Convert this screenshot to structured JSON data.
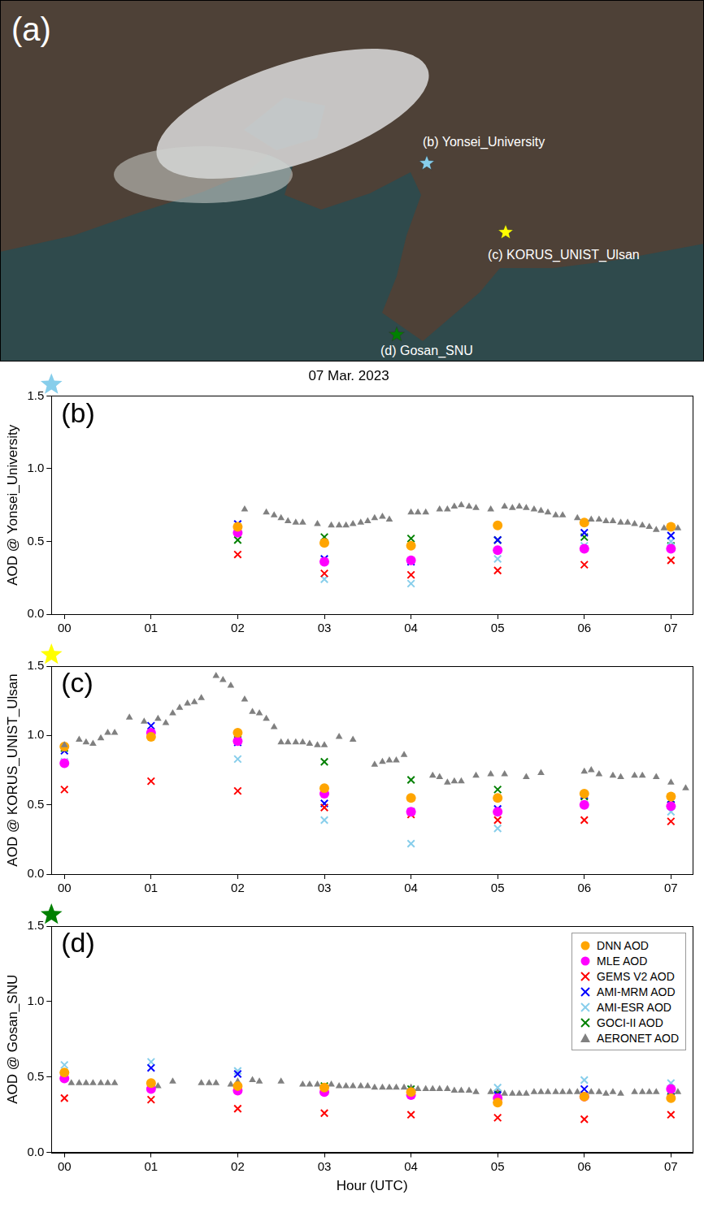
{
  "map": {
    "label": "(a)",
    "stations": [
      {
        "name": "(b) Yonsei_University",
        "color": "#87ceeb"
      },
      {
        "name": "(c) KORUS_UNIST_Ulsan",
        "color": "#ffff00"
      },
      {
        "name": "(d) Gosan_SNU",
        "color": "#008000"
      }
    ]
  },
  "chart_data": [
    {
      "type": "scatter",
      "title": "07 Mar. 2023",
      "panel_label": "(b)",
      "color": "#87ceeb",
      "y_label": "AOD @ Yonsei_University",
      "xlim": [
        -0.15,
        7.25
      ],
      "xticks": [
        {
          "value": 0,
          "label": "00"
        },
        {
          "value": 1,
          "label": "01"
        },
        {
          "value": 2,
          "label": "02"
        },
        {
          "value": 3,
          "label": "03"
        },
        {
          "value": 4,
          "label": "04"
        },
        {
          "value": 5,
          "label": "05"
        },
        {
          "value": 6,
          "label": "06"
        },
        {
          "value": 7,
          "label": "07"
        }
      ],
      "ylim": [
        0,
        1.5
      ],
      "yticks": [
        {
          "value": 0,
          "label": "0.0"
        },
        0.5,
        {
          "value": 1,
          "label": "1.0"
        },
        1.5
      ],
      "grid": false,
      "series": [
        {
          "color": "#808080",
          "marker": "triangle",
          "x": [
            2.08,
            2.33,
            2.42,
            2.5,
            2.58,
            2.67,
            2.75,
            2.92,
            3.08,
            3.17,
            3.25,
            3.33,
            3.42,
            3.5,
            3.58,
            3.67,
            3.75,
            4.0,
            4.08,
            4.17,
            4.33,
            4.42,
            4.5,
            4.58,
            4.67,
            4.75,
            4.92,
            5.08,
            5.17,
            5.25,
            5.33,
            5.42,
            5.5,
            5.58,
            5.67,
            5.75,
            5.92,
            6.08,
            6.17,
            6.25,
            6.33,
            6.42,
            6.5,
            6.58,
            6.67,
            6.75,
            6.83,
            6.92,
            7.08
          ],
          "values": [
            0.72,
            0.7,
            0.68,
            0.66,
            0.64,
            0.63,
            0.63,
            0.62,
            0.61,
            0.61,
            0.61,
            0.62,
            0.63,
            0.64,
            0.66,
            0.67,
            0.65,
            0.7,
            0.7,
            0.7,
            0.72,
            0.72,
            0.74,
            0.75,
            0.74,
            0.73,
            0.72,
            0.74,
            0.73,
            0.74,
            0.73,
            0.72,
            0.71,
            0.7,
            0.68,
            0.68,
            0.66,
            0.65,
            0.65,
            0.64,
            0.64,
            0.63,
            0.63,
            0.62,
            0.61,
            0.6,
            0.58,
            0.59,
            0.59
          ]
        },
        {
          "color": "#ffa500",
          "marker": "circle",
          "x": [
            2,
            3,
            4,
            5,
            6,
            7
          ],
          "values": [
            0.6,
            0.49,
            0.47,
            0.61,
            0.63,
            0.6
          ]
        },
        {
          "color": "#ff00ff",
          "marker": "circle",
          "x": [
            2,
            3,
            4,
            5,
            6,
            7
          ],
          "values": [
            0.56,
            0.36,
            0.37,
            0.44,
            0.45,
            0.45
          ]
        },
        {
          "color": "#ff0000",
          "marker": "x",
          "x": [
            2,
            3,
            4,
            5,
            6,
            7
          ],
          "values": [
            0.41,
            0.28,
            0.27,
            0.3,
            0.34,
            0.37
          ]
        },
        {
          "color": "#0000ff",
          "marker": "x",
          "x": [
            2,
            3,
            4,
            5,
            6,
            7
          ],
          "values": [
            0.62,
            0.38,
            0.36,
            0.51,
            0.56,
            0.54
          ]
        },
        {
          "color": "#87ceeb",
          "marker": "x",
          "x": [
            2,
            3,
            4,
            5,
            6,
            7
          ],
          "values": [
            0.59,
            0.24,
            0.21,
            0.38,
            0.47,
            0.5
          ]
        },
        {
          "color": "#008000",
          "marker": "x",
          "x": [
            2,
            3,
            4,
            5,
            6,
            7
          ],
          "values": [
            0.51,
            0.53,
            0.52,
            0.51,
            0.53,
            0.47
          ]
        }
      ]
    },
    {
      "type": "scatter",
      "panel_label": "(c)",
      "color": "#ffff00",
      "y_label": "AOD @ KORUS_UNIST_Ulsan",
      "xlim": [
        -0.15,
        7.25
      ],
      "xticks": [
        {
          "value": 0,
          "label": "00"
        },
        {
          "value": 1,
          "label": "01"
        },
        {
          "value": 2,
          "label": "02"
        },
        {
          "value": 3,
          "label": "03"
        },
        {
          "value": 4,
          "label": "04"
        },
        {
          "value": 5,
          "label": "05"
        },
        {
          "value": 6,
          "label": "06"
        },
        {
          "value": 7,
          "label": "07"
        }
      ],
      "ylim": [
        0,
        1.5
      ],
      "yticks": [
        {
          "value": 0,
          "label": "0.0"
        },
        0.5,
        {
          "value": 1,
          "label": "1.0"
        },
        1.5
      ],
      "grid": false,
      "series": [
        {
          "color": "#808080",
          "marker": "triangle",
          "x": [
            0.0,
            0.17,
            0.25,
            0.33,
            0.42,
            0.5,
            0.58,
            0.75,
            0.92,
            1.08,
            1.17,
            1.25,
            1.33,
            1.42,
            1.5,
            1.58,
            1.75,
            1.83,
            1.92,
            2.08,
            2.17,
            2.25,
            2.33,
            2.42,
            2.5,
            2.58,
            2.67,
            2.75,
            2.83,
            2.92,
            3.0,
            3.17,
            3.33,
            3.58,
            3.67,
            3.75,
            3.83,
            3.92,
            4.25,
            4.33,
            4.42,
            4.5,
            4.58,
            4.75,
            4.92,
            5.08,
            5.33,
            5.5,
            6.0,
            6.08,
            6.17,
            6.33,
            6.42,
            6.58,
            6.67,
            6.83,
            7.0,
            7.17
          ],
          "values": [
            0.93,
            0.97,
            0.95,
            0.94,
            0.98,
            1.02,
            1.02,
            1.13,
            1.1,
            1.12,
            1.09,
            1.16,
            1.2,
            1.23,
            1.24,
            1.27,
            1.43,
            1.4,
            1.36,
            1.26,
            1.17,
            1.16,
            1.12,
            1.06,
            0.95,
            0.95,
            0.95,
            0.95,
            0.94,
            0.93,
            0.93,
            0.99,
            0.97,
            0.79,
            0.81,
            0.82,
            0.82,
            0.86,
            0.71,
            0.7,
            0.66,
            0.67,
            0.67,
            0.71,
            0.72,
            0.72,
            0.7,
            0.73,
            0.74,
            0.75,
            0.72,
            0.71,
            0.7,
            0.71,
            0.71,
            0.7,
            0.66,
            0.62
          ]
        },
        {
          "color": "#ffa500",
          "marker": "circle",
          "x": [
            0,
            1,
            2,
            3,
            4,
            5,
            6,
            7
          ],
          "values": [
            0.92,
            0.99,
            1.02,
            0.62,
            0.55,
            0.55,
            0.58,
            0.56
          ]
        },
        {
          "color": "#ff00ff",
          "marker": "circle",
          "x": [
            0,
            1,
            2,
            3,
            4,
            5,
            6,
            7
          ],
          "values": [
            0.8,
            1.02,
            0.96,
            0.58,
            0.45,
            0.45,
            0.5,
            0.49
          ]
        },
        {
          "color": "#ff0000",
          "marker": "x",
          "x": [
            0,
            1,
            2,
            3,
            4,
            5,
            6,
            7
          ],
          "values": [
            0.61,
            0.67,
            0.6,
            0.48,
            0.43,
            0.39,
            0.39,
            0.38
          ]
        },
        {
          "color": "#0000ff",
          "marker": "x",
          "x": [
            0,
            1,
            2,
            3,
            4,
            5,
            6,
            7
          ],
          "values": [
            0.89,
            1.07,
            0.95,
            0.51,
            0.45,
            0.47,
            0.57,
            0.5
          ]
        },
        {
          "color": "#87ceeb",
          "marker": "x",
          "x": [
            0,
            1,
            2,
            3,
            4,
            5,
            6,
            7
          ],
          "values": [
            0.81,
            1.0,
            0.83,
            0.39,
            0.22,
            0.33,
            0.5,
            0.45
          ]
        },
        {
          "color": "#008000",
          "marker": "x",
          "x": [
            0,
            2,
            3,
            4,
            5,
            6,
            7
          ],
          "values": [
            0.91,
            0.97,
            0.81,
            0.68,
            0.61,
            0.56,
            0.54
          ]
        }
      ]
    },
    {
      "type": "scatter",
      "panel_label": "(d)",
      "color": "#008000",
      "y_label": "AOD @ Gosan_SNU",
      "x_label": "Hour (UTC)",
      "xlim": [
        -0.15,
        7.25
      ],
      "xticks": [
        {
          "value": 0,
          "label": "00"
        },
        {
          "value": 1,
          "label": "01"
        },
        {
          "value": 2,
          "label": "02"
        },
        {
          "value": 3,
          "label": "03"
        },
        {
          "value": 4,
          "label": "04"
        },
        {
          "value": 5,
          "label": "05"
        },
        {
          "value": 6,
          "label": "06"
        },
        {
          "value": 7,
          "label": "07"
        }
      ],
      "ylim": [
        0,
        1.5
      ],
      "yticks": [
        {
          "value": 0,
          "label": "0.0"
        },
        0.5,
        {
          "value": 1,
          "label": "1.0"
        },
        1.5
      ],
      "grid": false,
      "legend": "upper right",
      "series": [
        {
          "name": "DNN AOD",
          "color": "#ffa500",
          "marker": "circle",
          "x": [
            0,
            1,
            2,
            3,
            4,
            5,
            6,
            7
          ],
          "values": [
            0.53,
            0.46,
            0.44,
            0.43,
            0.4,
            0.33,
            0.37,
            0.36
          ]
        },
        {
          "name": "MLE AOD",
          "color": "#ff00ff",
          "marker": "circle",
          "x": [
            0,
            1,
            2,
            3,
            4,
            5,
            6,
            7
          ],
          "values": [
            0.49,
            0.42,
            0.41,
            0.4,
            0.38,
            0.36,
            0.37,
            0.42
          ]
        },
        {
          "name": "GEMS V2 AOD",
          "color": "#ff0000",
          "marker": "x",
          "x": [
            0,
            1,
            2,
            3,
            4,
            5,
            6,
            7
          ],
          "values": [
            0.36,
            0.35,
            0.29,
            0.26,
            0.25,
            0.23,
            0.22,
            0.25
          ]
        },
        {
          "name": "AMI-MRM AOD",
          "color": "#0000ff",
          "marker": "x",
          "x": [
            0,
            1,
            2,
            3,
            4,
            5,
            6,
            7
          ],
          "values": [
            0.5,
            0.56,
            0.52,
            0.42,
            0.4,
            0.38,
            0.42,
            0.4
          ]
        },
        {
          "name": "AMI-ESR AOD",
          "color": "#87ceeb",
          "marker": "x",
          "x": [
            0,
            1,
            2,
            3,
            4,
            5,
            6,
            7
          ],
          "values": [
            0.58,
            0.6,
            0.54,
            0.42,
            0.4,
            0.43,
            0.48,
            0.46
          ]
        },
        {
          "name": "GOCI-II AOD",
          "color": "#008000",
          "marker": "x",
          "x": [
            0,
            3,
            4,
            5,
            6,
            7
          ],
          "values": [
            0.51,
            0.44,
            0.42,
            0.39,
            0.38,
            0.37
          ]
        },
        {
          "name": "AERONET AOD",
          "color": "#808080",
          "marker": "triangle",
          "x": [
            0.08,
            0.17,
            0.25,
            0.33,
            0.42,
            0.5,
            0.58,
            1.08,
            1.25,
            1.58,
            1.67,
            1.75,
            1.92,
            2.0,
            2.17,
            2.25,
            2.5,
            2.75,
            2.83,
            2.92,
            3.08,
            3.17,
            3.25,
            3.33,
            3.42,
            3.5,
            3.58,
            3.67,
            3.75,
            3.83,
            3.92,
            4.0,
            4.08,
            4.17,
            4.25,
            4.33,
            4.42,
            4.5,
            4.58,
            4.67,
            4.75,
            4.92,
            5.0,
            5.08,
            5.17,
            5.25,
            5.33,
            5.42,
            5.5,
            5.58,
            5.67,
            5.75,
            5.83,
            5.92,
            6.08,
            6.17,
            6.25,
            6.33,
            6.42,
            6.58,
            6.67,
            6.75,
            6.83,
            7.08
          ],
          "values": [
            0.46,
            0.46,
            0.46,
            0.46,
            0.46,
            0.46,
            0.46,
            0.44,
            0.47,
            0.46,
            0.46,
            0.46,
            0.45,
            0.47,
            0.48,
            0.47,
            0.47,
            0.45,
            0.45,
            0.45,
            0.45,
            0.44,
            0.44,
            0.44,
            0.44,
            0.44,
            0.43,
            0.43,
            0.43,
            0.43,
            0.43,
            0.43,
            0.42,
            0.42,
            0.42,
            0.42,
            0.42,
            0.41,
            0.41,
            0.41,
            0.4,
            0.4,
            0.4,
            0.39,
            0.39,
            0.39,
            0.39,
            0.4,
            0.4,
            0.4,
            0.4,
            0.4,
            0.4,
            0.4,
            0.4,
            0.4,
            0.39,
            0.4,
            0.39,
            0.4,
            0.4,
            0.4,
            0.4,
            0.4
          ]
        }
      ]
    }
  ]
}
